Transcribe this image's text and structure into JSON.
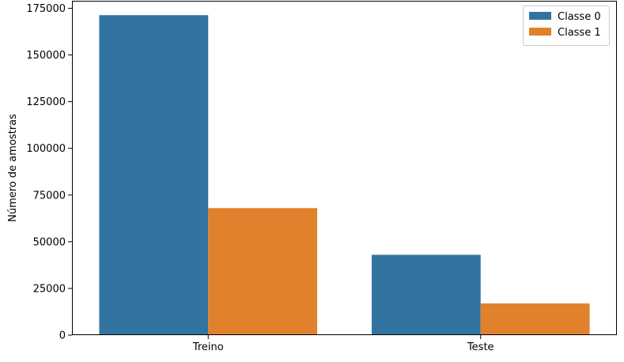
{
  "chart_data": {
    "type": "bar",
    "categories": [
      "Treino",
      "Teste"
    ],
    "series": [
      {
        "name": "Classe 0",
        "color": "#3274a1",
        "values": [
          171300,
          43000
        ]
      },
      {
        "name": "Classe 1",
        "color": "#e1812c",
        "values": [
          68000,
          17000
        ]
      }
    ],
    "xlabel": "",
    "ylabel": "Número de amostras",
    "ylim": [
      0,
      179000
    ],
    "yticks": [
      0,
      25000,
      50000,
      75000,
      100000,
      125000,
      150000,
      175000
    ],
    "grid": false,
    "legend_position": "top-right"
  }
}
